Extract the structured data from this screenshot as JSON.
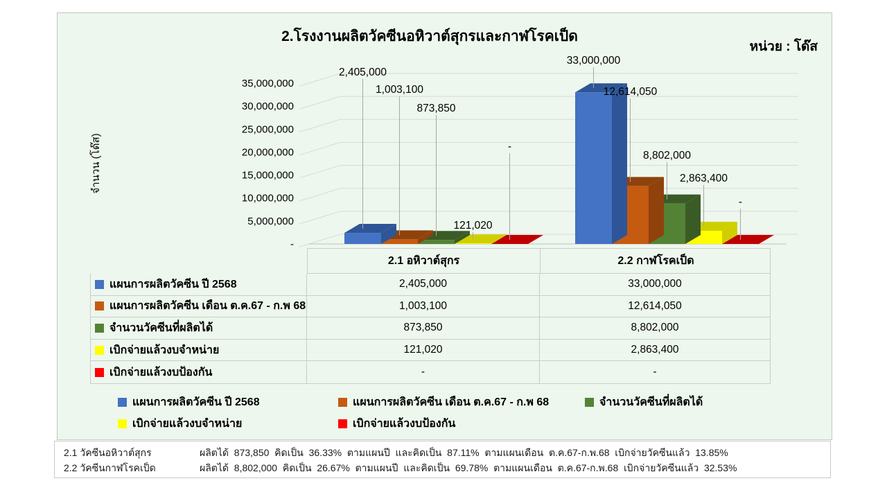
{
  "chart_data": {
    "type": "bar",
    "variant": "3d-clustered-column",
    "title": "2.โรงงานผลิตวัคซีนอหิวาต์สุกรและกาฬโรคเป็ด",
    "unit_label": "หน่วย : โด๊ส",
    "ylabel": "จำนวน (โด๊ส)",
    "ylim": [
      0,
      35000000
    ],
    "ytick_step": 5000000,
    "ytick_labels": [
      "-",
      "5,000,000",
      "10,000,000",
      "15,000,000",
      "20,000,000",
      "25,000,000",
      "30,000,000",
      "35,000,000"
    ],
    "categories": [
      "2.1 อหิวาต์สุกร",
      "2.2 กาฬโรคเป็ด"
    ],
    "series": [
      {
        "name": "แผนการผลิตวัคซีน ปี 2568",
        "color": "#4472C4",
        "dark": "#2E5597",
        "values": [
          2405000,
          33000000
        ],
        "labels": [
          "2,405,000",
          "33,000,000"
        ]
      },
      {
        "name": "แผนการผลิตวัคซีน เดือน ต.ค.67 - ก.พ 68",
        "color": "#C55A11",
        "dark": "#8F420C",
        "values": [
          1003100,
          12614050
        ],
        "labels": [
          "1,003,100",
          "12,614,050"
        ]
      },
      {
        "name": "จำนวนวัคซีนที่ผลิตได้",
        "color": "#548235",
        "dark": "#3A5B25",
        "values": [
          873850,
          8802000
        ],
        "labels": [
          "873,850",
          "8,802,000"
        ]
      },
      {
        "name": "เบิกจ่ายแล้วงบจำหน่าย",
        "color": "#FFFF00",
        "dark": "#CFCF00",
        "values": [
          121020,
          2863400
        ],
        "labels": [
          "121,020",
          "2,863,400"
        ]
      },
      {
        "name": "เบิกจ่ายแล้วงบป้องกัน",
        "color": "#FF0000",
        "dark": "#C00000",
        "values": [
          0,
          0
        ],
        "labels": [
          "-",
          "-"
        ]
      }
    ],
    "grid": true,
    "legend_position": "bottom",
    "panel_background": "#EDF7ED",
    "grid_color": "#D9D9D9"
  },
  "table": {
    "column_headers": [
      "2.1 อหิวาต์สุกร",
      "2.2 กาฬโรคเป็ด"
    ],
    "rows": [
      {
        "swatch": "#4472C4",
        "name": "แผนการผลิตวัคซีน ปี 2568",
        "values": [
          "2,405,000",
          "33,000,000"
        ]
      },
      {
        "swatch": "#C55A11",
        "name": "แผนการผลิตวัคซีน เดือน ต.ค.67 - ก.พ 68",
        "values": [
          "1,003,100",
          "12,614,050"
        ]
      },
      {
        "swatch": "#548235",
        "name": "จำนวนวัคซีนที่ผลิตได้",
        "values": [
          "873,850",
          "8,802,000"
        ]
      },
      {
        "swatch": "#FFFF00",
        "name": "เบิกจ่ายแล้วงบจำหน่าย",
        "values": [
          "121,020",
          "2,863,400"
        ]
      },
      {
        "swatch": "#FF0000",
        "name": "เบิกจ่ายแล้วงบป้องกัน",
        "values": [
          "-",
          "-"
        ]
      }
    ]
  },
  "footnotes": [
    {
      "label": "2.1 วัคซีนอหิวาต์สุกร",
      "text": "ผลิตได้  873,850  คิดเป็น  36.33%  ตามแผนปี  และคิดเป็น  87.11%  ตามแผนเดือน  ต.ค.67-ก.พ.68  เบิกจ่ายวัคซีนแล้ว  13.85%"
    },
    {
      "label": "2.2 วัคซีนกาฬโรคเป็ด",
      "text": "ผลิตได้  8,802,000  คิดเป็น  26.67%  ตามแผนปี  และคิดเป็น  69.78%  ตามแผนเดือน  ต.ค.67-ก.พ.68  เบิกจ่ายวัคซีนแล้ว  32.53%"
    }
  ]
}
